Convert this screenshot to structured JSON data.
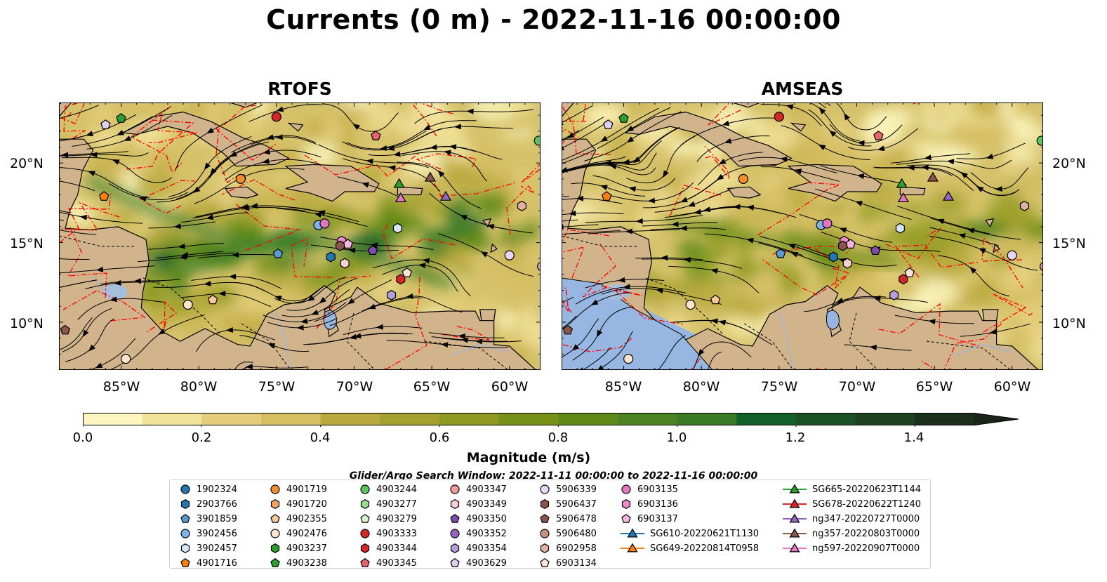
{
  "title": "Currents (0 m) - 2022-11-16 00:00:00",
  "panels": [
    {
      "id": "rtofs",
      "title": "RTOFS",
      "extra_land": false
    },
    {
      "id": "amseas",
      "title": "AMSEAS",
      "extra_land": true
    }
  ],
  "axes": {
    "lat_ticks": [
      "20°N",
      "15°N",
      "10°N"
    ],
    "lon_ticks": [
      "85°W",
      "80°W",
      "75°W",
      "70°W",
      "65°W",
      "60°W"
    ]
  },
  "colorbar": {
    "label": "Magnitude (m/s)",
    "ticks": [
      "0.0",
      "0.2",
      "0.4",
      "0.6",
      "0.8",
      "1.0",
      "1.2",
      "1.4"
    ],
    "range": [
      0,
      1.5
    ],
    "extend": "max",
    "colors": [
      "#fdf6c0",
      "#f1e29a",
      "#e3cd7a",
      "#d5bd62",
      "#c7b14d",
      "#b7a93b",
      "#a3a02e",
      "#8e9a21",
      "#779217",
      "#5f8a18",
      "#4c8221",
      "#3a7a27",
      "#1f6d2f",
      "#14602b",
      "#1a5125",
      "#1e4120",
      "#1c2f1a",
      "#1a2418"
    ]
  },
  "colors": {
    "ocean_blue": "#97b6e1",
    "land": "#d2b48c",
    "lake": "#a5bfdd",
    "eez": "#ff0000"
  },
  "legend": {
    "title": "Glider/Argo Search Window: 2022-11-11 00:00:00 to 2022-11-16 00:00:00",
    "columns": [
      [
        {
          "label": "1902324",
          "marker": "circle",
          "color": "#1f77b4"
        },
        {
          "label": "2903766",
          "marker": "hexagon",
          "color": "#1f77b4"
        },
        {
          "label": "3901859",
          "marker": "pentagon",
          "color": "#5a9bd4"
        },
        {
          "label": "3902456",
          "marker": "circle",
          "color": "#7fb3e6"
        },
        {
          "label": "3902457",
          "marker": "hexagon",
          "color": "#d4e7f7"
        },
        {
          "label": "4901716",
          "marker": "pentagon",
          "color": "#ff7f0e"
        }
      ],
      [
        {
          "label": "4901719",
          "marker": "circle",
          "color": "#f28e2b"
        },
        {
          "label": "4901720",
          "marker": "hexagon",
          "color": "#f4a460"
        },
        {
          "label": "4902355",
          "marker": "pentagon",
          "color": "#f9c99a"
        },
        {
          "label": "4902476",
          "marker": "circle",
          "color": "#fde5cc"
        },
        {
          "label": "4903237",
          "marker": "hexagon",
          "color": "#2ca02c"
        },
        {
          "label": "4903238",
          "marker": "pentagon",
          "color": "#2ca02c"
        }
      ],
      [
        {
          "label": "4903244",
          "marker": "circle",
          "color": "#5cc45c"
        },
        {
          "label": "4903277",
          "marker": "hexagon",
          "color": "#98df8a"
        },
        {
          "label": "4903279",
          "marker": "pentagon",
          "color": "#d8f5d0"
        },
        {
          "label": "4903333",
          "marker": "circle",
          "color": "#d62728"
        },
        {
          "label": "4903344",
          "marker": "hexagon",
          "color": "#d62728"
        },
        {
          "label": "4903345",
          "marker": "pentagon",
          "color": "#e8646a"
        }
      ],
      [
        {
          "label": "4903347",
          "marker": "circle",
          "color": "#f29a9a"
        },
        {
          "label": "4903349",
          "marker": "hexagon",
          "color": "#fbd0d0"
        },
        {
          "label": "4903350",
          "marker": "pentagon",
          "color": "#7e4cb0"
        },
        {
          "label": "4903352",
          "marker": "circle",
          "color": "#9467bd"
        },
        {
          "label": "4903354",
          "marker": "hexagon",
          "color": "#b39ddb"
        },
        {
          "label": "4903629",
          "marker": "pentagon",
          "color": "#dccff0"
        }
      ],
      [
        {
          "label": "5906339",
          "marker": "circle",
          "color": "#e6d5f5"
        },
        {
          "label": "5906437",
          "marker": "hexagon",
          "color": "#8c564b"
        },
        {
          "label": "5906478",
          "marker": "pentagon",
          "color": "#8c564b"
        },
        {
          "label": "5906480",
          "marker": "circle",
          "color": "#c49080"
        },
        {
          "label": "6902958",
          "marker": "hexagon",
          "color": "#e0b0a0"
        },
        {
          "label": "6903134",
          "marker": "pentagon",
          "color": "#fbe3da"
        }
      ],
      [
        {
          "label": "6903135",
          "marker": "circle",
          "color": "#e377c2"
        },
        {
          "label": "6903136",
          "marker": "hexagon",
          "color": "#ee88d0"
        },
        {
          "label": "6903137",
          "marker": "pentagon",
          "color": "#f7b6e2"
        },
        {
          "label": "SG610-20220621T1130",
          "marker": "triangle",
          "color": "#1f77b4"
        },
        {
          "label": "SG649-20220814T0958",
          "marker": "triangle",
          "color": "#ff7f0e"
        }
      ],
      [
        {
          "label": "SG665-20220623T1144",
          "marker": "triangle",
          "color": "#2ca02c"
        },
        {
          "label": "SG678-20220622T1240",
          "marker": "triangle",
          "color": "#d62728"
        },
        {
          "label": "ng347-20220727T0000",
          "marker": "triangle",
          "color": "#9467bd"
        },
        {
          "label": "ng357-20220803T0000",
          "marker": "triangle",
          "color": "#8c564b"
        },
        {
          "label": "ng597-20220907T0000",
          "marker": "triangle",
          "color": "#e377c2"
        }
      ]
    ]
  },
  "observations": [
    {
      "id": "4903238",
      "lon": -85.0,
      "lat": 22.8
    },
    {
      "id": "4903629",
      "lon": -86.0,
      "lat": 22.4
    },
    {
      "id": "4903333",
      "lon": -75.0,
      "lat": 22.9
    },
    {
      "id": "4903345",
      "lon": -68.6,
      "lat": 21.7
    },
    {
      "id": "4903244",
      "lon": -58.1,
      "lat": 21.4
    },
    {
      "id": "4901719",
      "lon": -77.3,
      "lat": 19.0
    },
    {
      "id": "4901716",
      "lon": -86.1,
      "lat": 17.9
    },
    {
      "id": "SG665-20220623T1144",
      "lon": -67.1,
      "lat": 18.7
    },
    {
      "id": "ng357-20220803T0000",
      "lon": -65.1,
      "lat": 19.1
    },
    {
      "id": "ng597-20220907T0000",
      "lon": -67.0,
      "lat": 17.8
    },
    {
      "id": "ng347-20220727T0000",
      "lon": -64.1,
      "lat": 17.9
    },
    {
      "id": "6902958",
      "lon": -59.2,
      "lat": 17.3
    },
    {
      "id": "3902456",
      "lon": -72.3,
      "lat": 16.1
    },
    {
      "id": "6903135",
      "lon": -71.9,
      "lat": 16.2
    },
    {
      "id": "3902457",
      "lon": -67.2,
      "lat": 15.9
    },
    {
      "id": "6903136",
      "lon": -70.8,
      "lat": 15.1
    },
    {
      "id": "6903137",
      "lon": -70.4,
      "lat": 14.9
    },
    {
      "id": "5906437",
      "lon": -70.9,
      "lat": 14.8
    },
    {
      "id": "4903350",
      "lon": -68.8,
      "lat": 14.5
    },
    {
      "id": "3901859",
      "lon": -74.9,
      "lat": 14.3
    },
    {
      "id": "2903766",
      "lon": -71.5,
      "lat": 14.1
    },
    {
      "id": "4903349",
      "lon": -70.6,
      "lat": 13.7
    },
    {
      "id": "5906339",
      "lon": -60.0,
      "lat": 14.2
    },
    {
      "id": "4903347",
      "lon": -57.9,
      "lat": 13.5
    },
    {
      "id": "6903134",
      "lon": -66.6,
      "lat": 13.1
    },
    {
      "id": "4903344",
      "lon": -67.0,
      "lat": 12.7
    },
    {
      "id": "4903354",
      "lon": -67.6,
      "lat": 11.7
    },
    {
      "id": "4902355",
      "lon": -79.1,
      "lat": 11.4
    },
    {
      "id": "4902476",
      "lon": -80.7,
      "lat": 11.1
    },
    {
      "id": "5906478",
      "lon": -88.6,
      "lat": 9.5
    },
    {
      "id": "4902476",
      "lon": -84.7,
      "lat": 7.7
    }
  ]
}
